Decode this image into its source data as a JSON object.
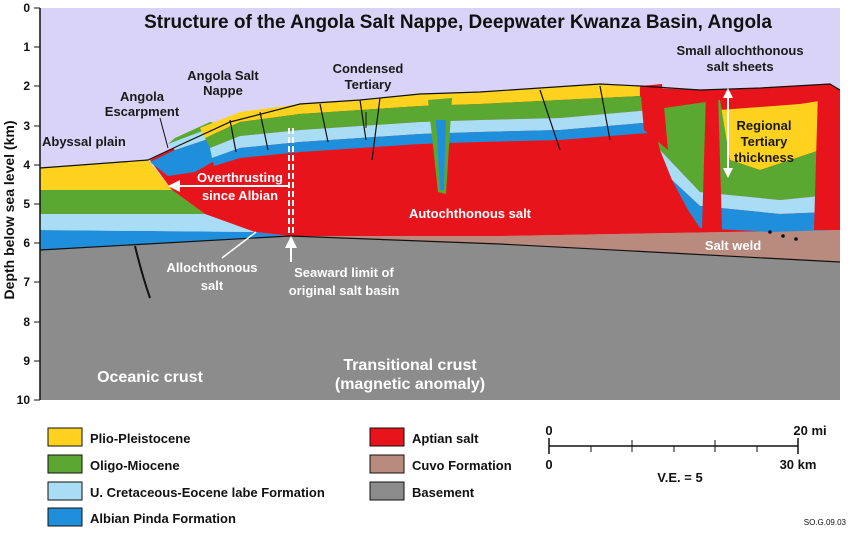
{
  "title": "Structure of the Angola Salt Nappe, Deepwater Kwanza Basin, Angola",
  "y_axis": {
    "label": "Depth below sea level (km)",
    "ticks": [
      "0",
      "1",
      "2",
      "3",
      "4",
      "5",
      "6",
      "7",
      "8",
      "9",
      "10"
    ]
  },
  "labels": {
    "abyssal_plain": "Abyssal plain",
    "angola_escarpment_1": "Angola",
    "angola_escarpment_2": "Escarpment",
    "salt_nappe_1": "Angola Salt",
    "salt_nappe_2": "Nappe",
    "condensed_1": "Condensed",
    "condensed_2": "Tertiary",
    "small_sheets_1": "Small allochthonous",
    "small_sheets_2": "salt sheets",
    "regional_1": "Regional",
    "regional_2": "Tertiary",
    "regional_3": "thickness",
    "overthrusting_1": "Overthrusting",
    "overthrusting_2": "since Albian",
    "autochthonous": "Autochthonous salt",
    "salt_weld": "Salt weld",
    "allochthonous_1": "Allochthonous",
    "allochthonous_2": "salt",
    "seaward_1": "Seaward limit of",
    "seaward_2": "original salt basin",
    "oceanic_crust": "Oceanic crust",
    "transitional_1": "Transitional crust",
    "transitional_2": "(magnetic anomaly)"
  },
  "legend": [
    {
      "label": "Plio-Pleistocene",
      "color": "#ffd21f"
    },
    {
      "label": "Oligo-Miocene",
      "color": "#5aa832"
    },
    {
      "label": "U. Cretaceous-Eocene labe Formation",
      "color": "#a9dcf5"
    },
    {
      "label": "Albian Pinda Formation",
      "color": "#1f8fdc"
    },
    {
      "label": "Aptian salt",
      "color": "#e8141c"
    },
    {
      "label": "Cuvo Formation",
      "color": "#b98b7e"
    },
    {
      "label": "Basement",
      "color": "#8c8c8c"
    }
  ],
  "scale": {
    "top_start": "0",
    "top_end": "20 mi",
    "bottom_start": "0",
    "bottom_end": "30 km",
    "ve": "V.E. = 5"
  },
  "ref": "SO.G.09.03",
  "colors": {
    "sea": "#d9d4f7",
    "plio": "#ffd21f",
    "oligo": "#5aa832",
    "ucret": "#a9dcf5",
    "albian": "#1f8fdc",
    "salt": "#e8141c",
    "cuvo": "#b98b7e",
    "basement": "#8c8c8c"
  }
}
